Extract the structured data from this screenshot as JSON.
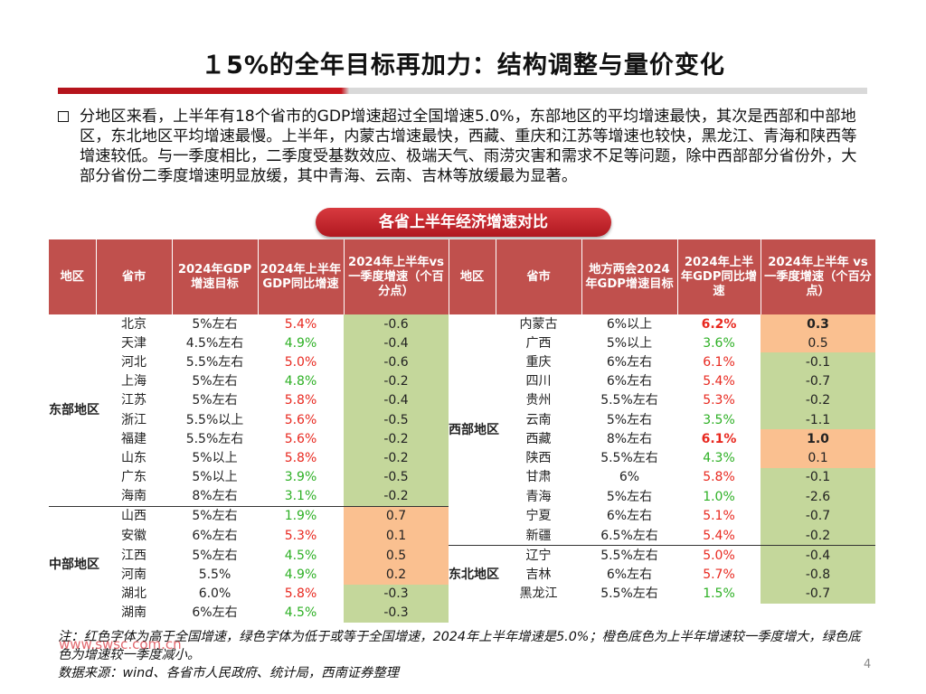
{
  "title": "１5%的全年目标再加力：结构调整与量价变化",
  "intro": "分地区来看，上半年有18个省市的GDP增速超过全国增速5.0%，东部地区的平均增速最快，其次是西部和中部地区，东北地区平均增速最慢。上半年，内蒙古增速最快，西藏、重庆和江苏等增速也较快，黑龙江、青海和陕西等增速较低。与一季度相比，二季度受基数效应、极端天气、雨涝灾害和需求不足等问题，除中西部部分省份外，大部分省份二季度增速明显放缓，其中青海、云南、吉林等放缓最为显著。",
  "table_title": "各省上半年经济增速对比",
  "headers": {
    "left": [
      "地区",
      "省市",
      "2024年GDP增速目标",
      "2024年上半年GDP同比增速",
      "2024年上半年vs 一季度增速（个百分点）"
    ],
    "right": [
      "地区",
      "省市",
      "地方两会2024年GDP增速目标",
      "2024年上半年GDP同比增速",
      "2024年上半年 vs 一季度增速（个百分点）"
    ]
  },
  "colors": {
    "header_bg": "#c0504d",
    "red_text": "#e8281f",
    "green_text": "#2db024",
    "green_bg": "#c4d79b",
    "orange_bg": "#fac090"
  },
  "rows": [
    {
      "lr": "东部地区",
      "lrs": 10,
      "lp": "北京",
      "lt": "5%左右",
      "lg": "5.4%",
      "lgc": "red",
      "lv": "-0.6",
      "lvb": "G",
      "rr": "西部地区",
      "rrs": 12,
      "rp": "内蒙古",
      "rt": "6%以上",
      "rg": "6.2%",
      "rgc": "red",
      "rgb": true,
      "rv": "0.3",
      "rvb": "O",
      "rvbold": true
    },
    {
      "lp": "天津",
      "lt": "4.5%左右",
      "lg": "4.9%",
      "lgc": "green",
      "lv": "-0.4",
      "lvb": "G",
      "rp": "广西",
      "rt": "5%以上",
      "rg": "3.6%",
      "rgc": "green",
      "rv": "0.5",
      "rvb": "O"
    },
    {
      "lp": "河北",
      "lt": "5.5%左右",
      "lg": "5.0%",
      "lgc": "red",
      "lv": "-0.6",
      "lvb": "G",
      "rp": "重庆",
      "rt": "6%左右",
      "rg": "6.1%",
      "rgc": "red",
      "rv": "-0.1",
      "rvb": "G"
    },
    {
      "lp": "上海",
      "lt": "5%左右",
      "lg": "4.8%",
      "lgc": "green",
      "lv": "-0.2",
      "lvb": "G",
      "rp": "四川",
      "rt": "6%左右",
      "rg": "5.4%",
      "rgc": "red",
      "rv": "-0.7",
      "rvb": "G"
    },
    {
      "lp": "江苏",
      "lt": "5%左右",
      "lg": "5.8%",
      "lgc": "red",
      "lv": "-0.4",
      "lvb": "G",
      "rp": "贵州",
      "rt": "5.5%左右",
      "rg": "5.3%",
      "rgc": "red",
      "rv": "-0.2",
      "rvb": "G"
    },
    {
      "lp": "浙江",
      "lt": "5.5%以上",
      "lg": "5.6%",
      "lgc": "red",
      "lv": "-0.5",
      "lvb": "G",
      "rp": "云南",
      "rt": "5%左右",
      "rg": "3.5%",
      "rgc": "green",
      "rv": "-1.1",
      "rvb": "G"
    },
    {
      "lp": "福建",
      "lt": "5.5%左右",
      "lg": "5.6%",
      "lgc": "red",
      "lv": "-0.2",
      "lvb": "G",
      "rp": "西藏",
      "rt": "8%左右",
      "rg": "6.1%",
      "rgc": "red",
      "rgb": true,
      "rv": "1.0",
      "rvb": "O",
      "rvbold": true
    },
    {
      "lp": "山东",
      "lt": "5%以上",
      "lg": "5.8%",
      "lgc": "red",
      "lv": "-0.2",
      "lvb": "G",
      "rp": "陕西",
      "rt": "5.5%左右",
      "rg": "4.3%",
      "rgc": "green",
      "rv": "0.1",
      "rvb": "O"
    },
    {
      "lp": "广东",
      "lt": "5%以上",
      "lg": "3.9%",
      "lgc": "green",
      "lv": "-0.5",
      "lvb": "G",
      "rp": "甘肃",
      "rt": "6%",
      "rg": "5.8%",
      "rgc": "red",
      "rv": "-0.1",
      "rvb": "G"
    },
    {
      "lp": "海南",
      "lt": "8%左右",
      "lg": "3.1%",
      "lgc": "green",
      "lv": "-0.2",
      "lvb": "G",
      "rp": "青海",
      "rt": "5%左右",
      "rg": "1.0%",
      "rgc": "green",
      "rv": "-2.6",
      "rvb": "G"
    },
    {
      "lr": "中部地区",
      "lrs": 6,
      "lp": "山西",
      "lt": "5%左右",
      "lg": "1.9%",
      "lgc": "green",
      "lv": "0.7",
      "lvb": "O",
      "rp": "宁夏",
      "rt": "6%左右",
      "rg": "5.1%",
      "rgc": "red",
      "rv": "-0.7",
      "rvb": "G"
    },
    {
      "lp": "安徽",
      "lt": "6%左右",
      "lg": "5.3%",
      "lgc": "red",
      "lv": "0.1",
      "lvb": "O",
      "rp": "新疆",
      "rt": "6.5%左右",
      "rg": "5.4%",
      "rgc": "red",
      "rv": "-0.2",
      "rvb": "G"
    },
    {
      "lp": "江西",
      "lt": "5%左右",
      "lg": "4.5%",
      "lgc": "green",
      "lv": "0.5",
      "lvb": "O",
      "rr": "东北地区",
      "rrs": 3,
      "rp": "辽宁",
      "rt": "5.5%左右",
      "rg": "5.0%",
      "rgc": "red",
      "rv": "-0.4",
      "rvb": "G"
    },
    {
      "lp": "河南",
      "lt": "5.5%",
      "lg": "4.9%",
      "lgc": "green",
      "lv": "0.2",
      "lvb": "O",
      "rp": "吉林",
      "rt": "6%左右",
      "rg": "5.7%",
      "rgc": "red",
      "rv": "-0.8",
      "rvb": "G"
    },
    {
      "lp": "湖北",
      "lt": "6.0%",
      "lg": "5.8%",
      "lgc": "red",
      "lv": "-0.3",
      "lvb": "G",
      "rp": "黑龙江",
      "rt": "5.5%左右",
      "rg": "1.5%",
      "rgc": "green",
      "rv": "-0.7",
      "rvb": "G"
    },
    {
      "lp": "湖南",
      "lt": "6%左右",
      "lg": "4.5%",
      "lgc": "green",
      "lv": "-0.3",
      "lvb": "G"
    }
  ],
  "note": "注：红色字体为高于全国增速，绿色字体为低于或等于全国增速，2024年上半年增速是5.0%；橙色底色为上半年增速较一季度增大，绿色底色为增速较一季度减小。",
  "source": "数据来源：wind、各省市人民政府、统计局，西南证券整理",
  "watermark": "www.swsc.com.cn",
  "page_number": "4"
}
